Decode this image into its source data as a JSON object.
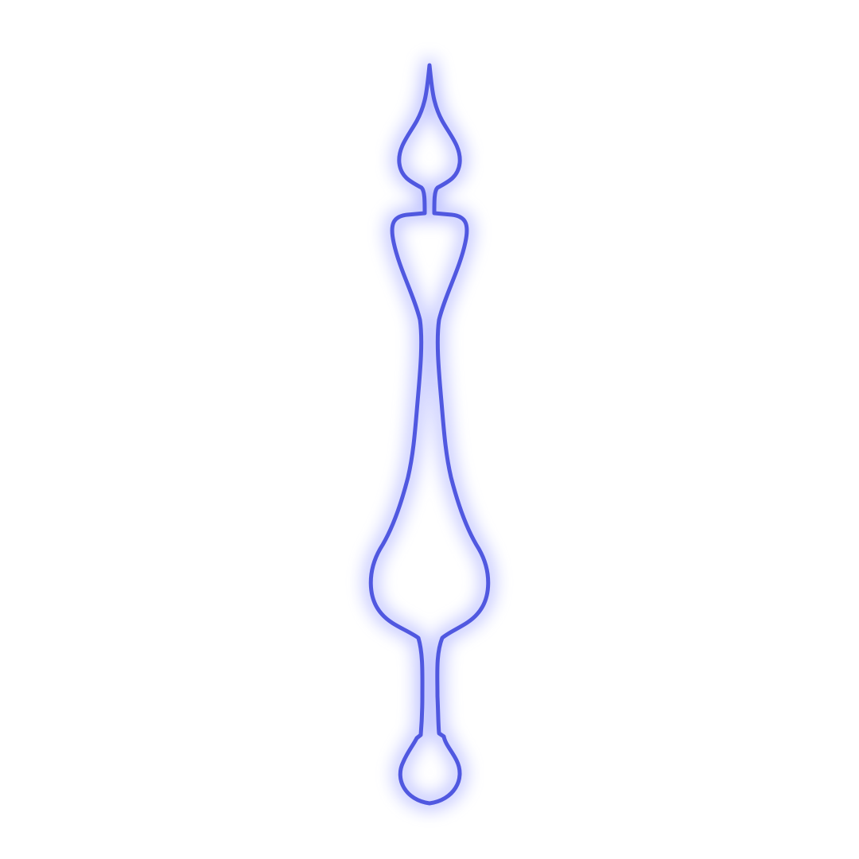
{
  "canvas": {
    "background_color": "#ffffff"
  },
  "ornament": {
    "shape": "vertical-finial-outline",
    "stroke_color": "#5058e0",
    "glow_color": "#7f86ff"
  }
}
